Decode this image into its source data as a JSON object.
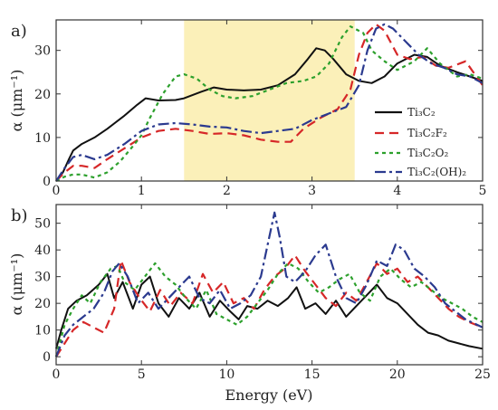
{
  "chart_data": [
    {
      "panel_label": "a)",
      "type": "line",
      "xlim": [
        0,
        5
      ],
      "ylim": [
        0,
        37
      ],
      "xticks": [
        0,
        1,
        2,
        3,
        4,
        5
      ],
      "yticks": [
        0,
        10,
        20,
        30
      ],
      "ylabel": "α (μm⁻¹)",
      "xlabel": "",
      "highlight_region": {
        "x0": 1.5,
        "x1": 3.5,
        "color": "#fbf0b9"
      },
      "legend_position": "center-right",
      "series": [
        {
          "name": "Ti₃C₂",
          "color": "#111111",
          "dash": "solid",
          "x": [
            0,
            0.08,
            0.15,
            0.2,
            0.3,
            0.45,
            0.6,
            0.8,
            0.95,
            1.05,
            1.2,
            1.4,
            1.5,
            1.7,
            1.85,
            2.0,
            2.2,
            2.4,
            2.6,
            2.8,
            2.95,
            3.05,
            3.15,
            3.25,
            3.4,
            3.55,
            3.7,
            3.85,
            4.0,
            4.2,
            4.35,
            4.5,
            4.7,
            4.85,
            5.0
          ],
          "y": [
            0,
            2,
            5,
            7,
            8.5,
            10,
            12,
            15,
            17.5,
            19,
            18.5,
            18.6,
            19,
            20.5,
            21.5,
            21,
            20.8,
            21,
            22,
            24.5,
            28,
            30.5,
            30,
            28,
            24.5,
            23,
            22.5,
            24,
            27,
            29,
            28.5,
            26.5,
            25,
            24,
            23
          ]
        },
        {
          "name": "Ti₃C₂F₂",
          "color": "#d62728",
          "dash": "10,6",
          "x": [
            0,
            0.1,
            0.2,
            0.3,
            0.45,
            0.6,
            0.8,
            1.0,
            1.2,
            1.4,
            1.6,
            1.8,
            2.0,
            2.2,
            2.4,
            2.6,
            2.75,
            2.9,
            3.1,
            3.3,
            3.45,
            3.55,
            3.65,
            3.75,
            3.85,
            4.0,
            4.15,
            4.3,
            4.45,
            4.6,
            4.8,
            5.0
          ],
          "y": [
            0,
            2,
            3.5,
            3.5,
            3,
            5,
            7.5,
            10,
            11.5,
            12,
            11.5,
            10.8,
            11,
            10.5,
            9.5,
            9,
            9,
            12,
            14.5,
            16.5,
            21,
            29,
            34,
            36,
            34.5,
            29,
            28,
            28.5,
            26.5,
            26,
            27.5,
            22
          ]
        },
        {
          "name": "Ti₃C₂O₂",
          "color": "#2ca02c",
          "dash": "4,4",
          "x": [
            0,
            0.1,
            0.2,
            0.3,
            0.45,
            0.6,
            0.75,
            0.9,
            1.0,
            1.1,
            1.25,
            1.4,
            1.5,
            1.65,
            1.8,
            1.95,
            2.1,
            2.3,
            2.5,
            2.7,
            2.9,
            3.05,
            3.2,
            3.35,
            3.45,
            3.6,
            3.7,
            3.85,
            4.0,
            4.2,
            4.35,
            4.5,
            4.7,
            4.85,
            5.0
          ],
          "y": [
            0,
            1,
            1.5,
            1.5,
            0.8,
            2,
            4.5,
            8,
            10.5,
            14.5,
            20,
            24,
            24.5,
            23.5,
            21,
            19.5,
            19,
            19.5,
            21,
            22.5,
            23,
            24,
            27,
            33,
            35.5,
            34,
            30,
            27.5,
            25.5,
            27.5,
            30.5,
            27,
            24,
            24.5,
            23.5
          ]
        },
        {
          "name": "Ti₃C₂(OH)₂",
          "color": "#2b3a8f",
          "dash": "12,4,3,4",
          "x": [
            0,
            0.1,
            0.2,
            0.3,
            0.45,
            0.6,
            0.8,
            1.0,
            1.2,
            1.4,
            1.6,
            1.8,
            2.0,
            2.2,
            2.4,
            2.6,
            2.8,
            3.0,
            3.2,
            3.4,
            3.55,
            3.65,
            3.75,
            3.85,
            3.95,
            4.1,
            4.25,
            4.4,
            4.55,
            4.7,
            4.85,
            5.0
          ],
          "y": [
            0,
            3,
            5.5,
            6,
            5,
            6,
            8.5,
            11.5,
            13,
            13.3,
            13,
            12.5,
            12.3,
            11.5,
            11,
            11.5,
            12,
            14,
            15.5,
            17,
            22,
            30,
            35,
            36,
            35,
            32,
            29,
            27,
            26,
            24.5,
            24,
            22.5
          ]
        }
      ],
      "legend": [
        "Ti₃C₂",
        "Ti₃C₂F₂",
        "Ti₃C₂O₂",
        "Ti₃C₂(OH)₂"
      ]
    },
    {
      "panel_label": "b)",
      "type": "line",
      "xlim": [
        0,
        25
      ],
      "ylim": [
        -3,
        57
      ],
      "xticks": [
        0,
        5,
        10,
        15,
        20,
        25
      ],
      "yticks": [
        0,
        10,
        20,
        30,
        40,
        50
      ],
      "ylabel": "α (μm⁻¹)",
      "xlabel": "Energy (eV)",
      "series": [
        {
          "name": "Ti₃C₂",
          "color": "#111111",
          "dash": "solid",
          "x": [
            0,
            0.3,
            0.7,
            1.2,
            1.8,
            2.5,
            3.0,
            3.4,
            3.9,
            4.5,
            5.0,
            5.5,
            6.0,
            6.6,
            7.2,
            7.8,
            8.4,
            9.0,
            9.6,
            10.2,
            10.7,
            11.2,
            11.8,
            12.4,
            13.0,
            13.6,
            14.1,
            14.6,
            15.2,
            15.8,
            16.4,
            17.0,
            17.6,
            18.2,
            18.8,
            19.4,
            20.0,
            20.6,
            21.2,
            21.8,
            22.4,
            23.0,
            23.6,
            24.2,
            25.0
          ],
          "y": [
            3,
            10,
            18,
            21,
            23,
            27,
            31,
            22,
            28,
            18,
            27,
            30,
            20,
            15,
            22,
            18,
            24,
            15,
            21,
            17,
            14,
            19,
            18,
            21,
            19,
            22,
            26,
            18,
            20,
            16,
            21,
            15,
            19,
            23,
            27,
            22,
            20,
            16,
            12,
            9,
            8,
            6,
            5,
            4,
            3
          ]
        },
        {
          "name": "Ti₃C₂F₂",
          "color": "#d62728",
          "dash": "10,6",
          "x": [
            0,
            0.5,
            1.0,
            1.6,
            2.2,
            2.8,
            3.4,
            3.8,
            4.3,
            4.9,
            5.5,
            6.1,
            6.7,
            7.3,
            8.0,
            8.6,
            9.2,
            9.8,
            10.4,
            11.0,
            11.6,
            12.2,
            12.8,
            13.4,
            14.0,
            14.6,
            15.2,
            15.8,
            16.4,
            17.0,
            17.6,
            18.2,
            18.8,
            19.4,
            20.0,
            20.6,
            21.2,
            21.8,
            22.4,
            23.0,
            23.6,
            24.2,
            25.0
          ],
          "y": [
            0,
            5,
            10,
            13,
            11,
            9,
            18,
            36,
            28,
            22,
            17,
            25,
            19,
            24,
            20,
            31,
            24,
            28,
            20,
            22,
            18,
            25,
            30,
            33,
            38,
            32,
            27,
            22,
            19,
            24,
            21,
            28,
            35,
            31,
            33,
            28,
            30,
            26,
            22,
            18,
            15,
            13,
            11
          ]
        },
        {
          "name": "Ti₃C₂O₂",
          "color": "#2ca02c",
          "dash": "4,4",
          "x": [
            0,
            0.5,
            1.0,
            1.5,
            2.0,
            2.6,
            3.2,
            3.6,
            4.0,
            4.6,
            5.2,
            5.8,
            6.4,
            7.0,
            7.6,
            8.2,
            8.8,
            9.4,
            10.0,
            10.6,
            11.2,
            11.8,
            12.4,
            13.0,
            13.6,
            14.2,
            14.8,
            15.4,
            16.0,
            16.6,
            17.2,
            17.8,
            18.4,
            19.0,
            19.6,
            20.2,
            20.8,
            21.4,
            22.0,
            22.6,
            23.2,
            23.8,
            24.4,
            25.0
          ],
          "y": [
            0,
            12,
            18,
            23,
            20,
            28,
            33,
            34,
            28,
            25,
            30,
            35,
            30,
            27,
            22,
            18,
            25,
            16,
            14,
            12,
            15,
            20,
            25,
            31,
            35,
            33,
            28,
            24,
            26,
            29,
            31,
            24,
            21,
            30,
            33,
            29,
            26,
            28,
            25,
            22,
            20,
            18,
            15,
            13
          ]
        },
        {
          "name": "Ti₃C₂(OH)₂",
          "color": "#2b3a8f",
          "dash": "12,4,3,4",
          "x": [
            0,
            0.5,
            1.0,
            1.6,
            2.2,
            2.8,
            3.3,
            3.7,
            4.2,
            4.8,
            5.4,
            6.0,
            6.6,
            7.2,
            7.8,
            8.4,
            9.0,
            9.6,
            10.2,
            10.8,
            11.4,
            12.0,
            12.4,
            12.8,
            13.1,
            13.5,
            14.0,
            14.6,
            15.2,
            15.8,
            16.4,
            17.0,
            17.6,
            18.2,
            18.8,
            19.4,
            19.9,
            20.4,
            21.0,
            21.6,
            22.2,
            22.8,
            23.4,
            24.0,
            25.0
          ],
          "y": [
            0,
            8,
            12,
            15,
            18,
            24,
            32,
            35,
            30,
            20,
            24,
            18,
            22,
            26,
            30,
            22,
            20,
            25,
            18,
            20,
            23,
            30,
            42,
            54,
            45,
            30,
            28,
            32,
            38,
            42,
            30,
            22,
            20,
            27,
            36,
            34,
            42,
            40,
            33,
            30,
            26,
            20,
            17,
            14,
            11
          ]
        }
      ]
    }
  ]
}
